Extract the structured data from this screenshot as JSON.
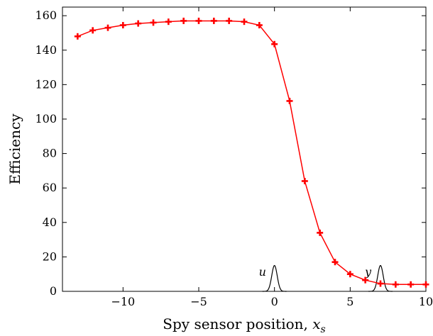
{
  "chart_data": {
    "type": "line",
    "title": "",
    "xlabel": "Spy sensor position, ",
    "xlabel_var": "x",
    "xlabel_sub": "s",
    "ylabel": "Efficiency",
    "xlim": [
      -14,
      10
    ],
    "ylim": [
      0,
      165
    ],
    "xticks": [
      -10,
      -5,
      0,
      5,
      10
    ],
    "xtick_labels": [
      "−10",
      "−5",
      "0",
      "5",
      "10"
    ],
    "yticks": [
      0,
      20,
      40,
      60,
      80,
      100,
      120,
      140,
      160
    ],
    "ytick_labels": [
      "0",
      "20",
      "40",
      "60",
      "80",
      "100",
      "120",
      "140",
      "160"
    ],
    "grid": false,
    "series": [
      {
        "color": "#ff0000",
        "marker": "plus",
        "x": [
          -13,
          -12,
          -11,
          -10,
          -9,
          -8,
          -7,
          -6,
          -5,
          -4,
          -3,
          -2,
          -1,
          0,
          1,
          2,
          3,
          4,
          5,
          6,
          7,
          8,
          9,
          10
        ],
        "y": [
          148,
          151.5,
          153,
          154.5,
          155.5,
          156,
          156.5,
          157,
          157,
          157,
          157,
          156.5,
          154.5,
          143.5,
          110.5,
          64,
          34,
          17,
          10,
          6.5,
          4.5,
          4,
          4,
          4
        ]
      }
    ],
    "pulses": [
      {
        "center": 0,
        "height": 15,
        "label": "u"
      },
      {
        "center": 7,
        "height": 15,
        "label": "y"
      }
    ]
  }
}
